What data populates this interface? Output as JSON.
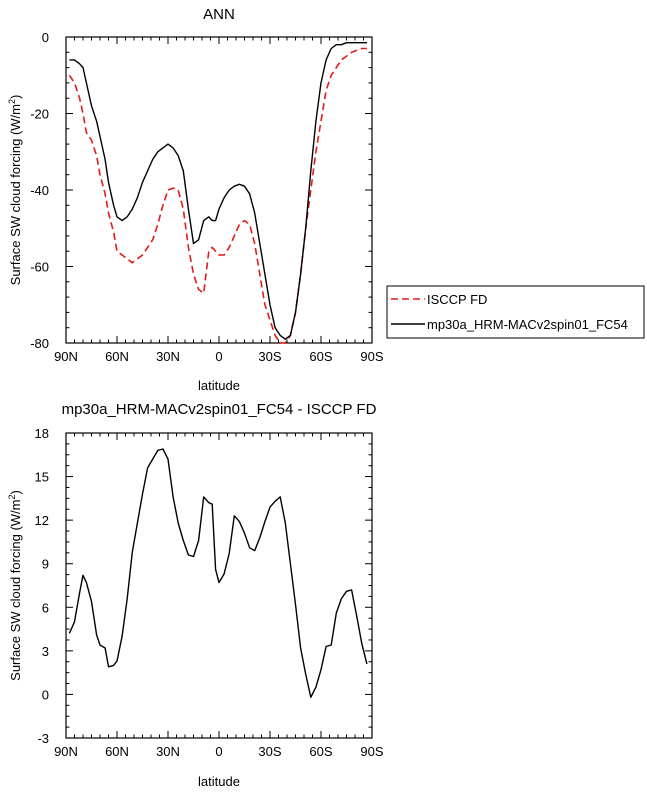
{
  "chart_data": [
    {
      "type": "line",
      "title": "ANN",
      "xlabel": "latitude",
      "ylabel": "Surface SW cloud forcing (W/m",
      "ylabel_sup": "2",
      "ylabel_end": ")",
      "xlim": [
        90,
        -90
      ],
      "ylim": [
        -80,
        0
      ],
      "xticks": [
        90,
        60,
        30,
        0,
        -30,
        -60,
        -90
      ],
      "xtick_labels": [
        "90N",
        "60N",
        "30N",
        "0",
        "30S",
        "60S",
        "90S"
      ],
      "yticks": [
        0,
        -20,
        -40,
        -60,
        -80
      ],
      "ytick_labels": [
        "0",
        "-20",
        "-40",
        "-60",
        "-80"
      ],
      "legend_position": "right",
      "series": [
        {
          "name": "ISCCP FD",
          "color": "#e41a1c",
          "dash": "dashed",
          "x": [
            88,
            85,
            82,
            80,
            78,
            75,
            72,
            70,
            67,
            65,
            62,
            60,
            57,
            54,
            51,
            48,
            45,
            42,
            39,
            36,
            33,
            30,
            27,
            24,
            21,
            18,
            15,
            12,
            9,
            6,
            4,
            2,
            0,
            -3,
            -6,
            -9,
            -12,
            -15,
            -18,
            -21,
            -24,
            -27,
            -30,
            -33,
            -36,
            -39,
            -42,
            -45,
            -48,
            -51,
            -54,
            -57,
            -60,
            -63,
            -66,
            -69,
            -72,
            -75,
            -78,
            -81,
            -84,
            -87
          ],
          "y": [
            -10,
            -12,
            -16,
            -20,
            -25,
            -27,
            -31,
            -36,
            -41,
            -46,
            -51,
            -56,
            -57,
            -58,
            -59,
            -58,
            -57,
            -55,
            -53,
            -49,
            -44,
            -40,
            -39.5,
            -40,
            -45,
            -55,
            -62,
            -66,
            -67,
            -56,
            -55,
            -56,
            -57,
            -57,
            -55,
            -52,
            -49,
            -48,
            -49,
            -54,
            -62,
            -70,
            -74,
            -78,
            -80,
            -80,
            -78,
            -72,
            -62,
            -50,
            -40,
            -30,
            -22,
            -14,
            -10,
            -8,
            -6,
            -5,
            -4,
            -3.5,
            -3,
            -3
          ]
        },
        {
          "name": "mp30a_HRM-MACv2spin01_FC54",
          "color": "#000000",
          "dash": "solid",
          "x": [
            88,
            85,
            82,
            80,
            78,
            75,
            72,
            70,
            67,
            65,
            62,
            60,
            57,
            54,
            51,
            48,
            45,
            42,
            39,
            36,
            33,
            30,
            27,
            24,
            21,
            18,
            15,
            12,
            9,
            6,
            4,
            2,
            0,
            -3,
            -6,
            -9,
            -12,
            -15,
            -18,
            -21,
            -24,
            -27,
            -30,
            -33,
            -36,
            -39,
            -42,
            -45,
            -48,
            -51,
            -54,
            -57,
            -60,
            -63,
            -66,
            -69,
            -72,
            -75,
            -78,
            -81,
            -84,
            -87
          ],
          "y": [
            -6,
            -6,
            -7,
            -8,
            -12,
            -18,
            -22,
            -26,
            -32,
            -38,
            -44,
            -47,
            -48,
            -47,
            -45,
            -42,
            -38,
            -35,
            -32,
            -30,
            -29,
            -28,
            -29,
            -31,
            -35,
            -45,
            -54,
            -53,
            -48,
            -47,
            -48,
            -48,
            -45,
            -42,
            -40,
            -39,
            -38.5,
            -39,
            -41,
            -46,
            -54,
            -62,
            -70,
            -76,
            -78,
            -79,
            -78,
            -72,
            -62,
            -50,
            -35,
            -22,
            -12,
            -6,
            -3,
            -2,
            -2,
            -1.5,
            -1.5,
            -1.5,
            -1.5,
            -1.5
          ]
        }
      ]
    },
    {
      "type": "line",
      "title": "mp30a_HRM-MACv2spin01_FC54 - ISCCP FD",
      "xlabel": "latitude",
      "ylabel": "Surface SW cloud forcing (W/m",
      "ylabel_sup": "2",
      "ylabel_end": ")",
      "xlim": [
        90,
        -90
      ],
      "ylim": [
        -3,
        18
      ],
      "xticks": [
        90,
        60,
        30,
        0,
        -30,
        -60,
        -90
      ],
      "xtick_labels": [
        "90N",
        "60N",
        "30N",
        "0",
        "30S",
        "60S",
        "90S"
      ],
      "yticks": [
        18,
        15,
        12,
        9,
        6,
        3,
        0,
        -3
      ],
      "ytick_labels": [
        "18",
        "15",
        "12",
        "9",
        "6",
        "3",
        "0",
        "-3"
      ],
      "series": [
        {
          "color": "#000000",
          "dash": "solid",
          "x": [
            88,
            85,
            82,
            80,
            78,
            75,
            72,
            70,
            67,
            65,
            62,
            60,
            57,
            54,
            51,
            48,
            45,
            42,
            39,
            36,
            33,
            30,
            27,
            24,
            21,
            18,
            15,
            12,
            9,
            6,
            4,
            2,
            0,
            -3,
            -6,
            -9,
            -12,
            -15,
            -18,
            -21,
            -24,
            -27,
            -30,
            -33,
            -36,
            -39,
            -42,
            -45,
            -48,
            -51,
            -54,
            -57,
            -60,
            -63,
            -66,
            -69,
            -72,
            -75,
            -78,
            -81,
            -84,
            -87
          ],
          "y": [
            4.2,
            5.0,
            7.0,
            8.2,
            7.7,
            6.4,
            4.1,
            3.4,
            3.2,
            1.9,
            2.0,
            2.3,
            4.0,
            6.6,
            9.8,
            11.8,
            13.8,
            15.6,
            16.2,
            16.8,
            16.9,
            16.2,
            13.6,
            11.8,
            10.6,
            9.6,
            9.5,
            10.6,
            13.6,
            13.2,
            13.1,
            8.6,
            7.7,
            8.3,
            9.7,
            12.3,
            11.9,
            11.1,
            10.1,
            9.9,
            10.8,
            11.9,
            12.9,
            13.3,
            13.6,
            11.8,
            9.0,
            6.2,
            3.2,
            1.4,
            -0.2,
            0.5,
            1.7,
            3.3,
            3.4,
            5.6,
            6.6,
            7.1,
            7.2,
            5.4,
            3.5,
            2.1
          ]
        }
      ]
    }
  ]
}
